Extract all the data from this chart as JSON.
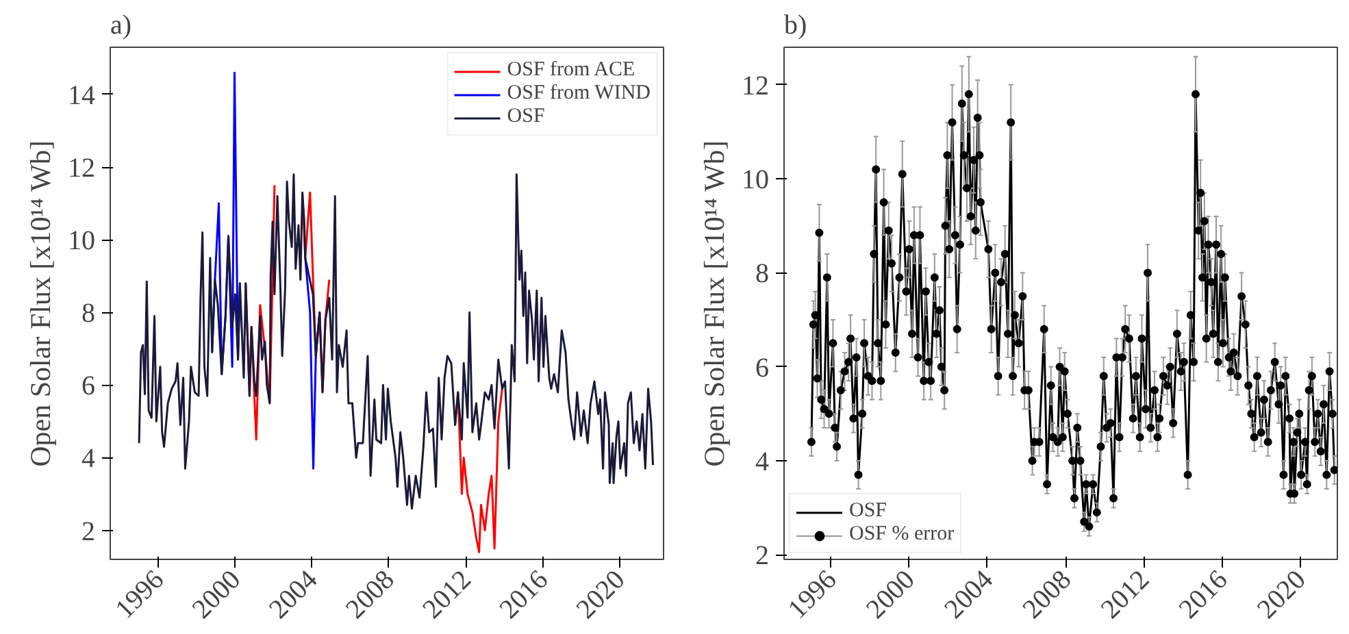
{
  "chart_data": [
    {
      "type": "line",
      "title": "a)",
      "ylabel": "Open Solar Flux [x10¹⁴ Wb]",
      "xlim": [
        1993.5,
        2022.3
      ],
      "ylim": [
        1.2,
        15.3
      ],
      "xticks": [
        1996,
        2000,
        2004,
        2008,
        2012,
        2016,
        2020
      ],
      "yticks": [
        2,
        4,
        6,
        8,
        10,
        12,
        14
      ],
      "grid": false,
      "legend": "top right",
      "line_style": "solid",
      "series": [
        {
          "name": "OSF from ACE",
          "color": "#ff0000",
          "x": [
            2000.55,
            2000.75,
            2000.85,
            2001.0,
            2001.1,
            2001.3,
            2001.55,
            2001.8,
            2001.95,
            2002.05,
            2002.8,
            2003.5,
            2003.65,
            2003.9,
            2004.05,
            2004.2,
            2004.4,
            2004.55,
            2004.7,
            2004.9,
            2008.0,
            2011.45,
            2011.6,
            2011.8,
            2011.9,
            2012.1,
            2012.35,
            2012.55,
            2012.7,
            2012.8,
            2013.0,
            2013.2,
            2013.35,
            2013.5,
            2013.7,
            2013.9,
            2014.05
          ],
          "values": [
            8.8,
            5.7,
            7.6,
            5.7,
            4.5,
            8.2,
            7.0,
            5.5,
            9.0,
            11.5,
            null,
            11.3,
            9.5,
            11.3,
            9.0,
            6.8,
            8.0,
            5.8,
            7.8,
            8.9,
            null,
            4.9,
            5.8,
            3.0,
            4.0,
            3.0,
            2.5,
            1.8,
            1.4,
            2.7,
            2.0,
            3.0,
            3.5,
            1.5,
            5.0,
            5.9,
            6.1
          ]
        },
        {
          "name": "OSF from WIND",
          "color": "#0000ff",
          "x": [
            1998.8,
            1998.95,
            1999.15,
            1999.3,
            1999.5,
            1999.65,
            1999.85,
            1999.97,
            2000.15,
            2000.25,
            2002.8,
            2003.65,
            2003.9,
            2004.07,
            2004.2,
            2004.4
          ],
          "values": [
            6.9,
            8.9,
            11.0,
            6.3,
            7.9,
            10.1,
            6.5,
            14.6,
            6.7,
            8.8,
            null,
            9.5,
            8.0,
            3.7,
            6.8,
            8.0
          ]
        },
        {
          "name": "OSF",
          "color": "#1a1a3a",
          "x": [
            1995.0,
            1995.1,
            1995.2,
            1995.3,
            1995.4,
            1995.5,
            1995.65,
            1995.8,
            1995.9,
            1996.1,
            1996.2,
            1996.3,
            1996.5,
            1996.7,
            1996.9,
            1997.0,
            1997.15,
            1997.3,
            1997.4,
            1997.6,
            1997.7,
            1997.9,
            1998.1,
            1998.2,
            1998.3,
            1998.4,
            1998.55,
            1998.7,
            1998.8,
            1998.95,
            1999.1,
            1999.3,
            1999.5,
            1999.65,
            1999.85,
            2000.0,
            2000.15,
            2000.25,
            2000.45,
            2000.55,
            2000.75,
            2000.85,
            2001.0,
            2001.1,
            2001.3,
            2001.4,
            2001.55,
            2001.65,
            2001.8,
            2001.85,
            2001.95,
            2002.05,
            2002.2,
            2002.35,
            2002.45,
            2002.6,
            2002.7,
            2002.8,
            2002.95,
            2003.05,
            2003.15,
            2003.3,
            2003.4,
            2003.5,
            2003.6,
            2003.65,
            2004.05,
            2004.2,
            2004.4,
            2004.55,
            2004.7,
            2004.9,
            2005.05,
            2005.2,
            2005.3,
            2005.4,
            2005.6,
            2005.8,
            2005.9,
            2006.1,
            2006.3,
            2006.4,
            2006.65,
            2006.9,
            2007.05,
            2007.25,
            2007.35,
            2007.6,
            2007.7,
            2007.85,
            2007.95,
            2008.1,
            2008.35,
            2008.45,
            2008.6,
            2008.75,
            2008.95,
            2009.05,
            2009.2,
            2009.4,
            2009.6,
            2009.8,
            2009.95,
            2010.1,
            2010.3,
            2010.45,
            2010.6,
            2010.75,
            2010.9,
            2011.05,
            2011.25,
            2011.45,
            2011.6,
            2011.8,
            2011.9,
            2012.1,
            2012.2,
            2012.35,
            2012.55,
            2012.7,
            2012.8,
            2013.0,
            2013.2,
            2013.35,
            2013.5,
            2013.7,
            2013.9,
            2014.05,
            2014.25,
            2014.4,
            2014.55,
            2014.65,
            2014.8,
            2014.9,
            2015.0,
            2015.1,
            2015.2,
            2015.3,
            2015.45,
            2015.55,
            2015.7,
            2015.8,
            2015.95,
            2016.05,
            2016.15,
            2016.35,
            2016.45,
            2016.6,
            2016.8,
            2017.0,
            2017.2,
            2017.35,
            2017.5,
            2017.65,
            2017.8,
            2018.0,
            2018.15,
            2018.35,
            2018.5,
            2018.7,
            2018.9,
            2019.0,
            2019.15,
            2019.25,
            2019.45,
            2019.5,
            2019.65,
            2019.7,
            2019.85,
            2019.95,
            2020.05,
            2020.25,
            2020.35,
            2020.45,
            2020.6,
            2020.75,
            2020.9,
            2021.05,
            2021.2,
            2021.35,
            2021.5,
            2021.65,
            2021.75
          ],
          "values": [
            4.4,
            6.9,
            7.1,
            5.75,
            8.85,
            5.3,
            5.1,
            7.9,
            5.0,
            6.5,
            4.7,
            4.3,
            5.5,
            5.9,
            6.1,
            6.6,
            4.9,
            6.2,
            3.7,
            5.0,
            6.5,
            5.8,
            5.7,
            8.4,
            10.2,
            6.5,
            5.7,
            9.5,
            6.9,
            8.9,
            8.2,
            6.3,
            7.9,
            10.1,
            7.6,
            8.5,
            6.7,
            8.8,
            6.2,
            8.8,
            5.7,
            7.6,
            6.1,
            5.7,
            7.9,
            6.7,
            7.2,
            6.0,
            5.5,
            9.0,
            10.5,
            8.5,
            11.2,
            8.8,
            6.8,
            8.6,
            11.6,
            10.5,
            9.8,
            11.8,
            9.2,
            10.4,
            8.9,
            11.3,
            10.5,
            9.5,
            8.5,
            6.8,
            8.0,
            5.8,
            7.8,
            8.4,
            6.7,
            11.2,
            5.8,
            7.1,
            6.5,
            7.5,
            5.5,
            5.5,
            4.0,
            4.4,
            4.4,
            6.8,
            3.5,
            5.6,
            4.5,
            4.4,
            6.0,
            4.5,
            5.9,
            5.0,
            4.0,
            3.2,
            4.7,
            4.0,
            2.7,
            3.5,
            2.6,
            3.5,
            2.9,
            4.3,
            5.8,
            4.7,
            4.8,
            3.2,
            6.2,
            4.5,
            6.2,
            6.8,
            6.6,
            4.9,
            5.8,
            4.5,
            6.6,
            5.1,
            8.0,
            4.7,
            5.5,
            4.5,
            4.9,
            5.8,
            5.6,
            6.0,
            4.8,
            6.7,
            5.9,
            6.1,
            3.7,
            7.1,
            6.1,
            11.8,
            8.9,
            9.7,
            7.9,
            9.1,
            6.6,
            8.6,
            7.8,
            6.7,
            8.6,
            6.1,
            8.4,
            6.5,
            7.9,
            6.2,
            5.9,
            6.3,
            5.8,
            7.5,
            6.9,
            5.6,
            5.0,
            4.5,
            5.8,
            4.6,
            5.3,
            4.4,
            5.5,
            6.1,
            5.2,
            5.6,
            3.7,
            5.8,
            4.9,
            3.3,
            4.4,
            3.3,
            4.6,
            5.0,
            3.7,
            4.4,
            3.5,
            5.5,
            5.8,
            4.4,
            5.0,
            4.2,
            5.2,
            3.7,
            5.9,
            5.0,
            3.8
          ]
        }
      ]
    },
    {
      "type": "line",
      "title": "b)",
      "ylabel": "Open Solar Flux [x10¹⁴ Wb]",
      "xlim": [
        1993.6,
        2021.9
      ],
      "ylim": [
        1.9,
        12.8
      ],
      "xticks": [
        1996,
        2000,
        2004,
        2008,
        2012,
        2016,
        2020
      ],
      "yticks": [
        2,
        4,
        6,
        8,
        10,
        12
      ],
      "grid": false,
      "legend": "bottom left",
      "x": [
        1995.0,
        1995.1,
        1995.2,
        1995.3,
        1995.4,
        1995.5,
        1995.65,
        1995.8,
        1995.9,
        1996.1,
        1996.2,
        1996.3,
        1996.5,
        1996.7,
        1996.9,
        1997.0,
        1997.15,
        1997.3,
        1997.4,
        1997.6,
        1997.7,
        1997.9,
        1998.1,
        1998.2,
        1998.3,
        1998.4,
        1998.55,
        1998.7,
        1998.8,
        1998.95,
        1999.1,
        1999.3,
        1999.5,
        1999.65,
        1999.85,
        2000.0,
        2000.15,
        2000.25,
        2000.45,
        2000.55,
        2000.75,
        2000.85,
        2001.0,
        2001.1,
        2001.3,
        2001.4,
        2001.55,
        2001.65,
        2001.8,
        2001.85,
        2001.95,
        2002.05,
        2002.2,
        2002.35,
        2002.45,
        2002.6,
        2002.7,
        2002.8,
        2002.95,
        2003.05,
        2003.15,
        2003.3,
        2003.4,
        2003.5,
        2003.6,
        2003.65,
        2004.05,
        2004.2,
        2004.4,
        2004.55,
        2004.7,
        2004.9,
        2005.05,
        2005.2,
        2005.3,
        2005.4,
        2005.6,
        2005.8,
        2005.9,
        2006.1,
        2006.3,
        2006.4,
        2006.65,
        2006.9,
        2007.05,
        2007.25,
        2007.35,
        2007.6,
        2007.7,
        2007.85,
        2007.95,
        2008.1,
        2008.35,
        2008.45,
        2008.6,
        2008.75,
        2008.95,
        2009.05,
        2009.2,
        2009.4,
        2009.6,
        2009.8,
        2009.95,
        2010.1,
        2010.3,
        2010.45,
        2010.6,
        2010.75,
        2010.9,
        2011.05,
        2011.25,
        2011.45,
        2011.6,
        2011.8,
        2011.9,
        2012.1,
        2012.2,
        2012.35,
        2012.55,
        2012.7,
        2012.8,
        2013.0,
        2013.2,
        2013.35,
        2013.5,
        2013.7,
        2013.9,
        2014.05,
        2014.25,
        2014.4,
        2014.55,
        2014.65,
        2014.8,
        2014.9,
        2015.0,
        2015.1,
        2015.2,
        2015.3,
        2015.45,
        2015.55,
        2015.7,
        2015.8,
        2015.95,
        2016.05,
        2016.15,
        2016.35,
        2016.45,
        2016.6,
        2016.8,
        2017.0,
        2017.2,
        2017.35,
        2017.5,
        2017.65,
        2017.8,
        2018.0,
        2018.15,
        2018.35,
        2018.5,
        2018.7,
        2018.9,
        2019.0,
        2019.15,
        2019.25,
        2019.45,
        2019.5,
        2019.65,
        2019.7,
        2019.85,
        2019.95,
        2020.05,
        2020.25,
        2020.35,
        2020.45,
        2020.6,
        2020.75,
        2020.9,
        2021.05,
        2021.2,
        2021.35,
        2021.5,
        2021.65,
        2021.75
      ],
      "series": [
        {
          "name": "OSF",
          "type": "line",
          "color": "#000000",
          "values": [
            4.4,
            6.9,
            7.1,
            5.75,
            8.85,
            5.3,
            5.1,
            7.9,
            5.0,
            6.5,
            4.7,
            4.3,
            5.5,
            5.9,
            6.1,
            6.6,
            4.9,
            6.2,
            3.7,
            5.0,
            6.5,
            5.8,
            5.7,
            8.4,
            10.2,
            6.5,
            5.7,
            9.5,
            6.9,
            8.9,
            8.2,
            6.3,
            7.9,
            10.1,
            7.6,
            8.5,
            6.7,
            8.8,
            6.2,
            8.8,
            5.7,
            7.6,
            6.1,
            5.7,
            7.9,
            6.7,
            7.2,
            6.0,
            5.5,
            9.0,
            10.5,
            8.5,
            11.2,
            8.8,
            6.8,
            8.6,
            11.6,
            10.5,
            9.8,
            11.8,
            9.2,
            10.4,
            8.9,
            11.3,
            10.5,
            9.5,
            8.5,
            6.8,
            8.0,
            5.8,
            7.8,
            8.4,
            6.7,
            11.2,
            5.8,
            7.1,
            6.5,
            7.5,
            5.5,
            5.5,
            4.0,
            4.4,
            4.4,
            6.8,
            3.5,
            5.6,
            4.5,
            4.4,
            6.0,
            4.5,
            5.9,
            5.0,
            4.0,
            3.2,
            4.7,
            4.0,
            2.7,
            3.5,
            2.6,
            3.5,
            2.9,
            4.3,
            5.8,
            4.7,
            4.8,
            3.2,
            6.2,
            4.5,
            6.2,
            6.8,
            6.6,
            4.9,
            5.8,
            4.5,
            6.6,
            5.1,
            8.0,
            4.7,
            5.5,
            4.5,
            4.9,
            5.8,
            5.6,
            6.0,
            4.8,
            6.7,
            5.9,
            6.1,
            3.7,
            7.1,
            6.1,
            11.8,
            8.9,
            9.7,
            7.9,
            9.1,
            6.6,
            8.6,
            7.8,
            6.7,
            8.6,
            6.1,
            8.4,
            6.5,
            7.9,
            6.2,
            5.9,
            6.3,
            5.8,
            7.5,
            6.9,
            5.6,
            5.0,
            4.5,
            5.8,
            4.6,
            5.3,
            4.4,
            5.5,
            6.1,
            5.2,
            5.6,
            3.7,
            5.8,
            4.9,
            3.3,
            4.4,
            3.3,
            4.6,
            5.0,
            3.7,
            4.4,
            3.5,
            5.5,
            5.8,
            4.4,
            5.0,
            4.2,
            5.2,
            3.7,
            5.9,
            5.0,
            3.8
          ]
        },
        {
          "name": "OSF % error",
          "type": "scatter",
          "marker": "circle",
          "color": "#000000",
          "values": [
            4.4,
            6.9,
            7.1,
            5.75,
            8.85,
            5.3,
            5.1,
            7.9,
            5.0,
            6.5,
            4.7,
            4.3,
            5.5,
            5.9,
            6.1,
            6.6,
            4.9,
            6.2,
            3.7,
            5.0,
            6.5,
            5.8,
            5.7,
            8.4,
            10.2,
            6.5,
            5.7,
            9.5,
            6.9,
            8.9,
            8.2,
            6.3,
            7.9,
            10.1,
            7.6,
            8.5,
            6.7,
            8.8,
            6.2,
            8.8,
            5.7,
            7.6,
            6.1,
            5.7,
            7.9,
            6.7,
            7.2,
            6.0,
            5.5,
            9.0,
            10.5,
            8.5,
            11.2,
            8.8,
            6.8,
            8.6,
            11.6,
            10.5,
            9.8,
            11.8,
            9.2,
            10.4,
            8.9,
            11.3,
            10.5,
            9.5,
            8.5,
            6.8,
            8.0,
            5.8,
            7.8,
            8.4,
            6.7,
            11.2,
            5.8,
            7.1,
            6.5,
            7.5,
            5.5,
            5.5,
            4.0,
            4.4,
            4.4,
            6.8,
            3.5,
            5.6,
            4.5,
            4.4,
            6.0,
            4.5,
            5.9,
            5.0,
            4.0,
            3.2,
            4.7,
            4.0,
            2.7,
            3.5,
            2.6,
            3.5,
            2.9,
            4.3,
            5.8,
            4.7,
            4.8,
            3.2,
            6.2,
            4.5,
            6.2,
            6.8,
            6.6,
            4.9,
            5.8,
            4.5,
            6.6,
            5.1,
            8.0,
            4.7,
            5.5,
            4.5,
            4.9,
            5.8,
            5.6,
            6.0,
            4.8,
            6.7,
            5.9,
            6.1,
            3.7,
            7.1,
            6.1,
            11.8,
            8.9,
            9.7,
            7.9,
            9.1,
            6.6,
            8.6,
            7.8,
            6.7,
            8.6,
            6.1,
            8.4,
            6.5,
            7.9,
            6.2,
            5.9,
            6.3,
            5.8,
            7.5,
            6.9,
            5.6,
            5.0,
            4.5,
            5.8,
            4.6,
            5.3,
            4.4,
            5.5,
            6.1,
            5.2,
            5.6,
            3.7,
            5.8,
            4.9,
            3.3,
            4.4,
            3.3,
            4.6,
            5.0,
            3.7,
            4.4,
            3.5,
            5.5,
            5.8,
            4.4,
            5.0,
            4.2,
            5.2,
            3.7,
            5.9,
            5.0,
            3.8
          ],
          "errors": [
            0.3,
            0.5,
            0.5,
            0.4,
            0.6,
            0.4,
            0.4,
            0.5,
            0.3,
            0.5,
            0.3,
            0.3,
            0.4,
            0.4,
            0.4,
            0.5,
            0.3,
            0.4,
            0.3,
            0.3,
            0.5,
            0.4,
            0.4,
            0.6,
            0.7,
            0.5,
            0.4,
            0.7,
            0.5,
            0.6,
            0.6,
            0.4,
            0.5,
            0.7,
            0.5,
            0.6,
            0.5,
            0.6,
            0.4,
            0.6,
            0.4,
            0.5,
            0.4,
            0.4,
            0.5,
            0.5,
            0.5,
            0.4,
            0.4,
            0.6,
            0.7,
            0.6,
            0.8,
            0.6,
            0.5,
            0.6,
            0.8,
            0.7,
            0.7,
            0.8,
            0.6,
            0.7,
            0.6,
            0.8,
            0.7,
            0.7,
            0.6,
            0.5,
            0.6,
            0.4,
            0.5,
            0.6,
            0.5,
            0.8,
            0.4,
            0.5,
            0.5,
            0.5,
            0.4,
            0.4,
            0.3,
            0.3,
            0.3,
            0.5,
            0.2,
            0.4,
            0.3,
            0.3,
            0.4,
            0.3,
            0.4,
            0.3,
            0.3,
            0.2,
            0.3,
            0.3,
            0.2,
            0.2,
            0.2,
            0.2,
            0.2,
            0.3,
            0.4,
            0.3,
            0.3,
            0.2,
            0.4,
            0.3,
            0.4,
            0.5,
            0.5,
            0.3,
            0.4,
            0.3,
            0.5,
            0.4,
            0.6,
            0.3,
            0.4,
            0.3,
            0.3,
            0.4,
            0.4,
            0.4,
            0.3,
            0.5,
            0.4,
            0.4,
            0.3,
            0.5,
            0.4,
            0.8,
            0.6,
            0.7,
            0.5,
            0.6,
            0.5,
            0.6,
            0.5,
            0.5,
            0.6,
            0.4,
            0.6,
            0.5,
            0.5,
            0.4,
            0.4,
            0.4,
            0.4,
            0.5,
            0.5,
            0.4,
            0.3,
            0.3,
            0.4,
            0.3,
            0.4,
            0.3,
            0.4,
            0.4,
            0.4,
            0.4,
            0.3,
            0.4,
            0.3,
            0.2,
            0.3,
            0.2,
            0.3,
            0.3,
            0.3,
            0.3,
            0.2,
            0.4,
            0.4,
            0.3,
            0.3,
            0.3,
            0.4,
            0.3,
            0.4,
            0.3,
            0.3
          ]
        }
      ]
    }
  ]
}
